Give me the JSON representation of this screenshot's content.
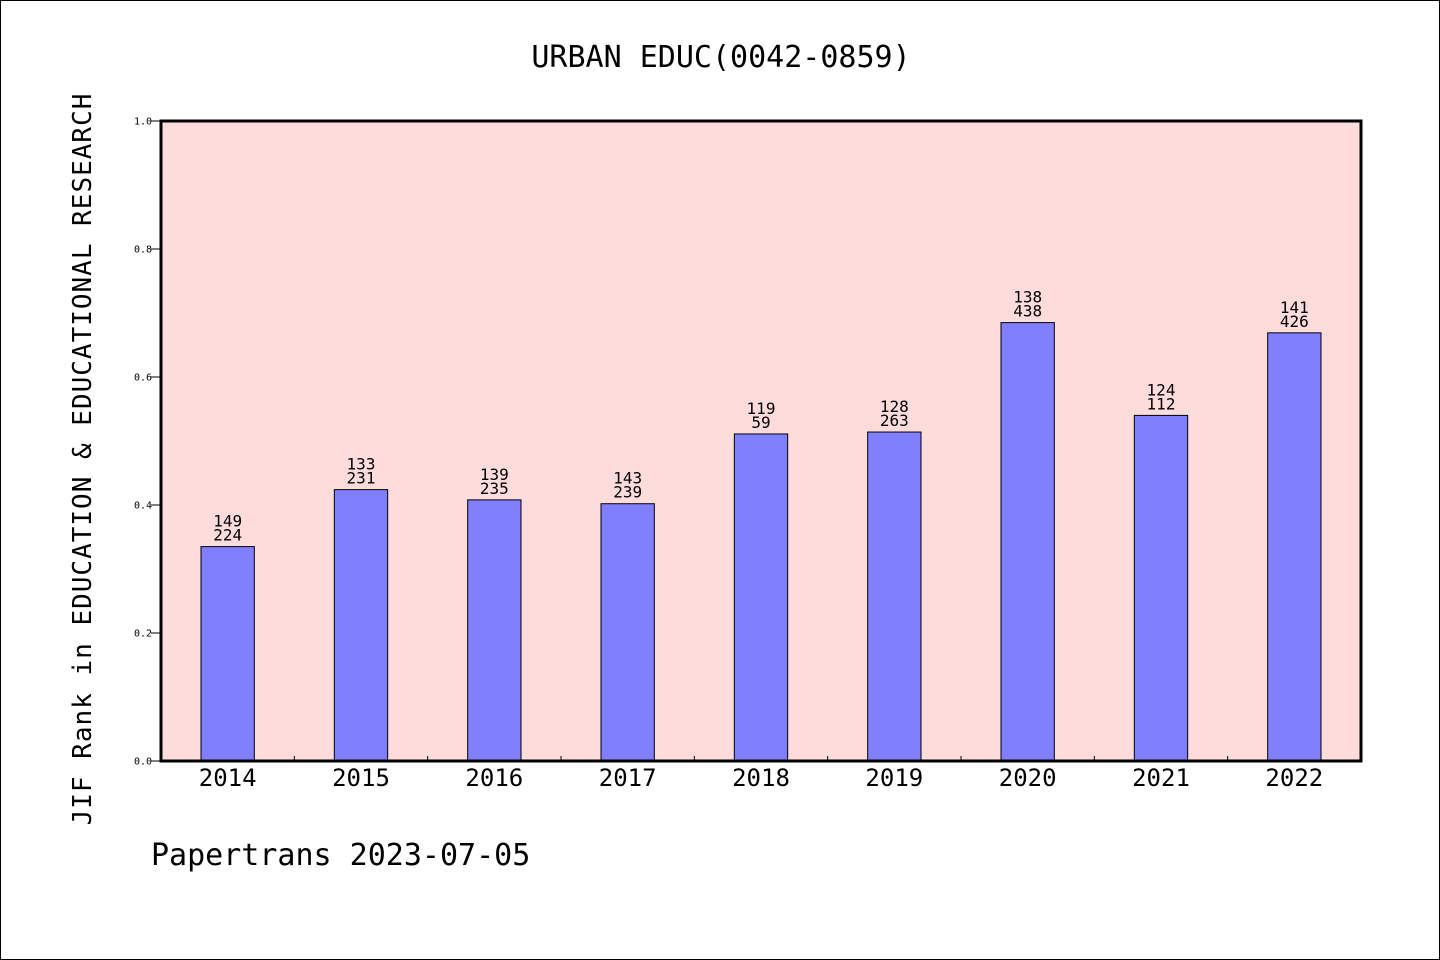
{
  "chart_data": {
    "type": "bar",
    "title": "URBAN EDUC(0042-0859)",
    "ylabel": "JIF Rank in EDUCATION & EDUCATIONAL RESEARCH",
    "xlabel": "",
    "ylim": [
      0,
      1.0
    ],
    "yticks": [
      "0.0",
      "0.2",
      "0.4",
      "0.6",
      "0.8",
      "1.0"
    ],
    "categories": [
      "2014",
      "2015",
      "2016",
      "2017",
      "2018",
      "2019",
      "2020",
      "2021",
      "2022"
    ],
    "values": [
      0.335,
      0.424,
      0.408,
      0.402,
      0.511,
      0.514,
      0.685,
      0.54,
      0.669
    ],
    "labels_top": [
      "149",
      "133",
      "139",
      "143",
      "119",
      "128",
      "138",
      "124",
      "141"
    ],
    "labels_bottom": [
      "224",
      "231",
      "235",
      "239",
      "59",
      "263",
      "438",
      "112",
      "426"
    ],
    "grid": false,
    "colors": {
      "bar": "#8080ff",
      "plot_background": "#ffdcdc"
    }
  },
  "footer": "Papertrans 2023-07-05"
}
